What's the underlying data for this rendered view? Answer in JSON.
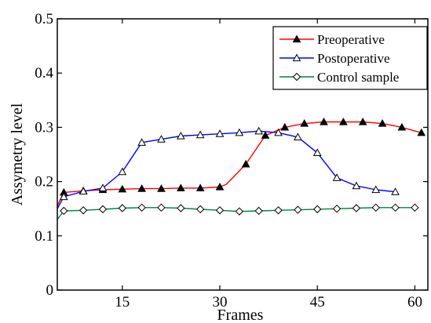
{
  "chart_data": {
    "type": "line",
    "xlabel": "Frames",
    "ylabel": "Assymetry level",
    "xlim": [
      5,
      62
    ],
    "ylim": [
      0,
      0.5
    ],
    "x_ticks": [
      15,
      30,
      45,
      60
    ],
    "y_ticks": [
      0,
      0.1,
      0.2,
      0.3,
      0.4,
      0.5
    ],
    "y_tick_labels": [
      "0",
      "0.1",
      "0.2",
      "0.3",
      "0.4",
      "0.5"
    ],
    "grid": false,
    "legend_position": "top-right",
    "series": [
      {
        "name": "Preoperative",
        "color": "#ff0000",
        "marker": "filled-triangle",
        "x": [
          5,
          6,
          9,
          12,
          15,
          18,
          21,
          24,
          27,
          30,
          31,
          34,
          37,
          40,
          43,
          46,
          49,
          52,
          55,
          58,
          61
        ],
        "y": [
          0.155,
          0.18,
          0.183,
          0.185,
          0.186,
          0.187,
          0.187,
          0.188,
          0.188,
          0.19,
          0.195,
          0.232,
          0.285,
          0.3,
          0.307,
          0.31,
          0.31,
          0.31,
          0.307,
          0.3,
          0.29
        ],
        "marker_x": [
          6,
          9,
          12,
          15,
          18,
          21,
          24,
          27,
          30,
          34,
          37,
          40,
          43,
          46,
          49,
          52,
          55,
          58,
          61
        ]
      },
      {
        "name": "Postoperative",
        "color": "#0000ff",
        "marker": "open-triangle",
        "x": [
          5,
          6,
          9,
          12,
          15,
          18,
          21,
          24,
          27,
          30,
          33,
          36,
          39,
          42,
          45,
          48,
          51,
          54,
          57
        ],
        "y": [
          0.15,
          0.172,
          0.182,
          0.188,
          0.218,
          0.272,
          0.278,
          0.284,
          0.286,
          0.288,
          0.29,
          0.293,
          0.29,
          0.282,
          0.253,
          0.207,
          0.192,
          0.185,
          0.181
        ],
        "marker_x": [
          6,
          9,
          12,
          15,
          18,
          21,
          24,
          27,
          30,
          33,
          36,
          39,
          42,
          45,
          48,
          51,
          54,
          57
        ]
      },
      {
        "name": "Control sample",
        "color": "#008040",
        "marker": "open-diamond",
        "x": [
          5,
          6,
          9,
          12,
          15,
          18,
          21,
          24,
          27,
          30,
          33,
          36,
          39,
          42,
          45,
          48,
          51,
          54,
          57,
          60
        ],
        "y": [
          0.13,
          0.146,
          0.147,
          0.149,
          0.151,
          0.152,
          0.152,
          0.151,
          0.149,
          0.147,
          0.145,
          0.146,
          0.147,
          0.148,
          0.149,
          0.15,
          0.151,
          0.152,
          0.152,
          0.152
        ],
        "marker_x": [
          6,
          9,
          12,
          15,
          18,
          21,
          24,
          27,
          30,
          33,
          36,
          39,
          42,
          45,
          48,
          51,
          54,
          57,
          60
        ]
      }
    ]
  }
}
